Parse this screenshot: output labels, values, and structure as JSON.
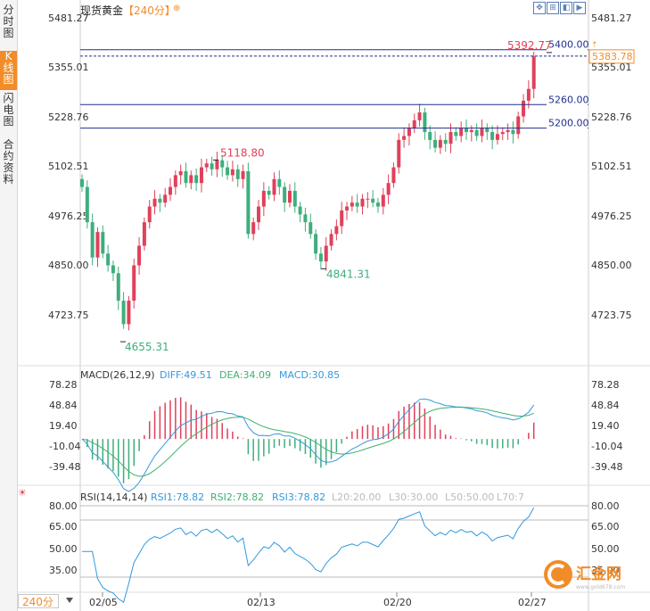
{
  "sidebar": {
    "tabs": [
      {
        "label": "分时图",
        "active": false
      },
      {
        "label": "K线图",
        "active": true
      },
      {
        "label": "闪电图",
        "active": false
      },
      {
        "label": "合约资料",
        "active": false
      }
    ]
  },
  "header": {
    "instrument": "现货黄金",
    "period_label": "【240分】",
    "toolbar_icons": [
      "zoom-in-icon",
      "zoom-out-icon",
      "scroll-left-icon",
      "scroll-right-icon",
      "reset-icon"
    ]
  },
  "period_selector": {
    "value": "240分"
  },
  "chart_data": [
    {
      "type": "candlestick",
      "y_ticks": [
        "5481.27",
        "5355.01",
        "5228.76",
        "5102.51",
        "4976.25",
        "4850.00",
        "4723.75"
      ],
      "ylim": [
        4660,
        5490
      ],
      "last_price": "5383.78",
      "level_lines": [
        {
          "value": 5400.0,
          "label": "5400.00"
        },
        {
          "value": 5260.0,
          "label": "5260.00"
        },
        {
          "value": 5200.0,
          "label": "5200.00"
        }
      ],
      "annotations": [
        {
          "label": "5392.77",
          "value": 5392.77,
          "kind": "high"
        },
        {
          "label": "5118.80",
          "value": 5118.8,
          "kind": "high"
        },
        {
          "label": "4841.31",
          "value": 4841.31,
          "kind": "low"
        },
        {
          "label": "4655.31",
          "value": 4655.31,
          "kind": "low"
        }
      ],
      "x_ticks": [
        "02/05",
        "02/13",
        "02/20",
        "02/27"
      ],
      "colors": {
        "up": "#e0405a",
        "down": "#3fae7c",
        "levels": "#1f2f8f",
        "last": "#f28c28"
      }
    },
    {
      "type": "line",
      "indicator": "MACD(26,12,9)",
      "legend": [
        {
          "name": "DIFF",
          "value": "49.51",
          "color": "#3399dd"
        },
        {
          "name": "DEA",
          "value": "34.09",
          "color": "#40b070"
        },
        {
          "name": "MACD",
          "value": "30.85",
          "color": "#3399dd"
        }
      ],
      "y_ticks": [
        "78.28",
        "48.84",
        "19.40",
        "-10.04",
        "-39.48"
      ],
      "ylim": [
        -55,
        85
      ]
    },
    {
      "type": "line",
      "indicator": "RSI(14,14,14)",
      "legend": [
        {
          "name": "RSI1",
          "value": "78.82",
          "color": "#3399dd"
        },
        {
          "name": "RSI2",
          "value": "78.82",
          "color": "#40b070"
        },
        {
          "name": "RSI3",
          "value": "78.82",
          "color": "#3399dd"
        },
        {
          "name": "L20",
          "value": "20.00",
          "color": "#bbbbbb"
        },
        {
          "name": "L30",
          "value": "30.00",
          "color": "#bbbbbb"
        },
        {
          "name": "L50",
          "value": "50.00",
          "color": "#bbbbbb"
        },
        {
          "name": "L70",
          "value": "7",
          "color": "#bbbbbb"
        }
      ],
      "y_ticks": [
        "80.00",
        "65.00",
        "50.00",
        "35.00"
      ],
      "ylim": [
        24,
        86
      ]
    }
  ],
  "watermark": {
    "brand": "汇金网",
    "url": "www.gold678.com"
  }
}
